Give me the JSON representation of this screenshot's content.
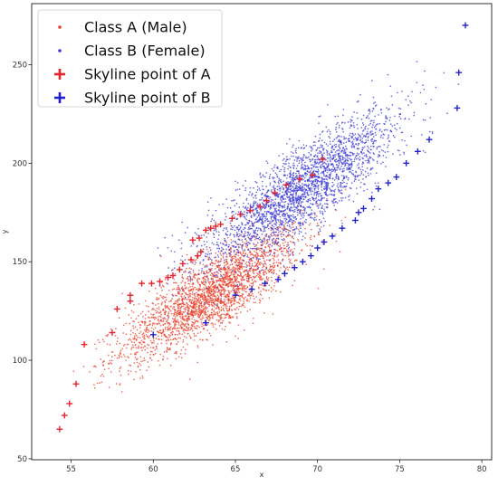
{
  "chart_data": {
    "type": "scatter",
    "xlabel": "x",
    "ylabel": "y",
    "xlim": [
      52.6,
      80.6
    ],
    "ylim": [
      49.5,
      281
    ],
    "x_ticks": [
      55,
      60,
      65,
      70,
      75,
      80
    ],
    "y_ticks": [
      50,
      100,
      150,
      200,
      250
    ],
    "legend_position": "top-left",
    "grid": false,
    "series": [
      {
        "name": "Class A (Male)",
        "marker": "dot",
        "color": "#e8402a",
        "cloud": {
          "count": 2600,
          "x_mean": 63.6,
          "x_sd": 2.7,
          "slope": 4.95,
          "intercept": -181.0,
          "resid_sd": 9.5,
          "x_min": 54.0,
          "x_max": 72.0
        },
        "points": []
      },
      {
        "name": "Class B (Female)",
        "marker": "dot",
        "color": "#3b3bd6",
        "cloud": {
          "count": 2600,
          "x_mean": 69.0,
          "x_sd": 2.9,
          "slope": 5.4,
          "intercept": -186.0,
          "resid_sd": 10.5,
          "x_min": 60.0,
          "x_max": 80.0
        },
        "points": []
      },
      {
        "name": "Skyline point of A",
        "marker": "plus",
        "color": "#e8242a",
        "points": [
          {
            "x": 54.3,
            "y": 65
          },
          {
            "x": 54.6,
            "y": 72
          },
          {
            "x": 54.9,
            "y": 78
          },
          {
            "x": 55.3,
            "y": 88
          },
          {
            "x": 55.8,
            "y": 108
          },
          {
            "x": 57.5,
            "y": 114
          },
          {
            "x": 57.8,
            "y": 126
          },
          {
            "x": 58.6,
            "y": 130
          },
          {
            "x": 58.6,
            "y": 133
          },
          {
            "x": 59.3,
            "y": 139
          },
          {
            "x": 59.9,
            "y": 139
          },
          {
            "x": 60.4,
            "y": 140
          },
          {
            "x": 60.9,
            "y": 142
          },
          {
            "x": 61.2,
            "y": 143
          },
          {
            "x": 61.6,
            "y": 146
          },
          {
            "x": 61.8,
            "y": 149
          },
          {
            "x": 62.3,
            "y": 151
          },
          {
            "x": 62.7,
            "y": 153
          },
          {
            "x": 62.9,
            "y": 155
          },
          {
            "x": 62.4,
            "y": 161
          },
          {
            "x": 62.8,
            "y": 162
          },
          {
            "x": 63.2,
            "y": 166
          },
          {
            "x": 63.5,
            "y": 167
          },
          {
            "x": 63.8,
            "y": 168
          },
          {
            "x": 64.1,
            "y": 169
          },
          {
            "x": 64.8,
            "y": 172
          },
          {
            "x": 65.3,
            "y": 174
          },
          {
            "x": 65.9,
            "y": 176
          },
          {
            "x": 66.5,
            "y": 178
          },
          {
            "x": 66.9,
            "y": 181
          },
          {
            "x": 67.4,
            "y": 185
          },
          {
            "x": 68.1,
            "y": 189
          },
          {
            "x": 68.9,
            "y": 192
          },
          {
            "x": 69.7,
            "y": 194
          },
          {
            "x": 70.3,
            "y": 202
          }
        ]
      },
      {
        "name": "Skyline point of B",
        "marker": "plus",
        "color": "#2222cc",
        "points": [
          {
            "x": 60.0,
            "y": 113
          },
          {
            "x": 63.2,
            "y": 119
          },
          {
            "x": 65.0,
            "y": 133
          },
          {
            "x": 66.0,
            "y": 136
          },
          {
            "x": 66.8,
            "y": 139
          },
          {
            "x": 67.6,
            "y": 141
          },
          {
            "x": 68.0,
            "y": 144
          },
          {
            "x": 68.6,
            "y": 147
          },
          {
            "x": 69.1,
            "y": 150
          },
          {
            "x": 69.6,
            "y": 153
          },
          {
            "x": 70.0,
            "y": 157
          },
          {
            "x": 70.4,
            "y": 160
          },
          {
            "x": 70.9,
            "y": 163
          },
          {
            "x": 71.5,
            "y": 167
          },
          {
            "x": 72.3,
            "y": 171
          },
          {
            "x": 72.5,
            "y": 175
          },
          {
            "x": 72.8,
            "y": 177
          },
          {
            "x": 73.3,
            "y": 182
          },
          {
            "x": 73.7,
            "y": 187
          },
          {
            "x": 74.3,
            "y": 190
          },
          {
            "x": 74.8,
            "y": 193
          },
          {
            "x": 75.4,
            "y": 200
          },
          {
            "x": 76.1,
            "y": 206
          },
          {
            "x": 76.8,
            "y": 212
          },
          {
            "x": 78.5,
            "y": 228
          },
          {
            "x": 78.6,
            "y": 246
          },
          {
            "x": 79.0,
            "y": 270
          }
        ]
      }
    ]
  }
}
